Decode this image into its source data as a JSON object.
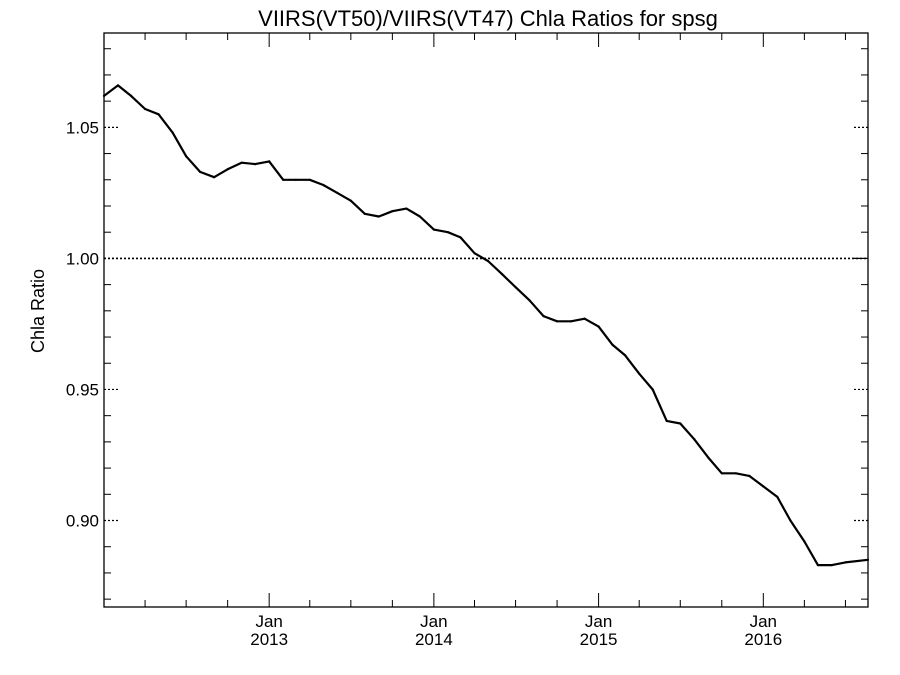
{
  "chart_data": {
    "type": "line",
    "title": "VIIRS(VT50)/VIIRS(VT47)  Chla Ratios for spsg",
    "xlabel": "",
    "ylabel": "Chla Ratio",
    "xlim": [
      "2012-01-01",
      "2016-08-20"
    ],
    "ylim": [
      0.867,
      1.086
    ],
    "yticks": [
      0.9,
      0.95,
      1.0,
      1.05
    ],
    "ytick_labels": [
      "0.90",
      "0.95",
      "1.00",
      "1.05"
    ],
    "xticks": [
      {
        "date": "2013-01-01",
        "month": "Jan",
        "year": "2013"
      },
      {
        "date": "2014-01-01",
        "month": "Jan",
        "year": "2014"
      },
      {
        "date": "2015-01-01",
        "month": "Jan",
        "year": "2015"
      },
      {
        "date": "2016-01-01",
        "month": "Jan",
        "year": "2016"
      }
    ],
    "reference_line": {
      "y": 1.0,
      "style": "dotted"
    },
    "grid": false,
    "series": [
      {
        "x": [
          "2012-01-01",
          "2012-02-01",
          "2012-03-01",
          "2012-04-01",
          "2012-05-01",
          "2012-06-01",
          "2012-07-01",
          "2012-08-01",
          "2012-09-01",
          "2012-10-01",
          "2012-11-01",
          "2012-12-01",
          "2013-01-01",
          "2013-02-01",
          "2013-03-01",
          "2013-04-01",
          "2013-05-01",
          "2013-06-01",
          "2013-07-01",
          "2013-08-01",
          "2013-09-01",
          "2013-10-01",
          "2013-11-01",
          "2013-12-01",
          "2014-01-01",
          "2014-02-01",
          "2014-03-01",
          "2014-04-01",
          "2014-05-01",
          "2014-06-01",
          "2014-07-01",
          "2014-08-01",
          "2014-09-01",
          "2014-10-01",
          "2014-11-01",
          "2014-12-01",
          "2015-01-01",
          "2015-02-01",
          "2015-03-01",
          "2015-04-01",
          "2015-05-01",
          "2015-06-01",
          "2015-07-01",
          "2015-08-01",
          "2015-09-01",
          "2015-10-01",
          "2015-11-01",
          "2015-12-01",
          "2016-01-01",
          "2016-02-01",
          "2016-03-01",
          "2016-04-01",
          "2016-05-01",
          "2016-06-01",
          "2016-07-01",
          "2016-08-20"
        ],
        "y": [
          1.062,
          1.066,
          1.062,
          1.057,
          1.055,
          1.048,
          1.039,
          1.033,
          1.031,
          1.034,
          1.0365,
          1.036,
          1.037,
          1.03,
          1.03,
          1.03,
          1.028,
          1.025,
          1.022,
          1.017,
          1.016,
          1.018,
          1.019,
          1.016,
          1.011,
          1.01,
          1.008,
          1.002,
          0.999,
          0.994,
          0.989,
          0.984,
          0.978,
          0.976,
          0.976,
          0.977,
          0.974,
          0.967,
          0.963,
          0.956,
          0.95,
          0.938,
          0.937,
          0.931,
          0.924,
          0.918,
          0.918,
          0.917,
          0.913,
          0.909,
          0.9,
          0.892,
          0.883,
          0.883,
          0.884,
          0.885
        ]
      }
    ]
  }
}
